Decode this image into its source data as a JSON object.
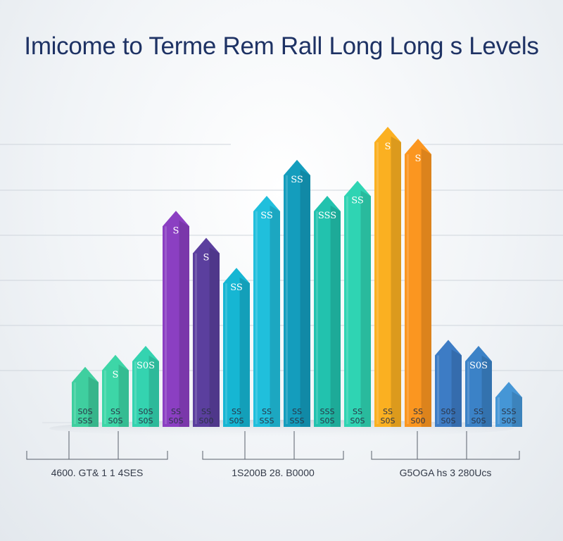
{
  "colors": {
    "title": "#1e3264",
    "grid": "#cfd5dc",
    "bracket": "#59606b"
  },
  "chart_data": {
    "type": "bar",
    "title": "Imicome to Terme Rem Rall Long Long s Levels",
    "grid": true,
    "ylim": [
      0,
      100
    ],
    "groups": [
      {
        "label": "4600. GT& 1 1 4SES",
        "bracket": [
          38,
          238
        ]
      },
      {
        "label": "1S200B 28. B0000",
        "bracket": [
          288,
          488
        ]
      },
      {
        "label": "G5OGA hs  3 280Ucs",
        "bracket": [
          528,
          738
        ]
      }
    ],
    "bars": [
      {
        "value": 20,
        "top_label": "",
        "label": "S0S",
        "label2": "SSS",
        "color": "#3fcf9f"
      },
      {
        "value": 24,
        "top_label": "S",
        "label": "SS",
        "label2": "S0S",
        "color": "#3dd6a7"
      },
      {
        "value": 27,
        "top_label": "S0S",
        "label": "S0S",
        "label2": "S0S",
        "color": "#34d3b0"
      },
      {
        "value": 72,
        "top_label": "S",
        "label": "SS",
        "label2": "S0S",
        "color": "#8b3fc2"
      },
      {
        "value": 63,
        "top_label": "S",
        "label": "SS",
        "label2": "S00",
        "color": "#5b3f9e"
      },
      {
        "value": 53,
        "top_label": "SS",
        "label": "SS",
        "label2": "S0S",
        "color": "#16b6d3"
      },
      {
        "value": 77,
        "top_label": "SS",
        "label": "SS",
        "label2": "SSS",
        "color": "#20bfdc"
      },
      {
        "value": 89,
        "top_label": "SS",
        "label": "SS",
        "label2": "SSS",
        "color": "#149dbd"
      },
      {
        "value": 77,
        "top_label": "SSS",
        "label": "SSS",
        "label2": "S0S",
        "color": "#22c2ae"
      },
      {
        "value": 82,
        "top_label": "SS",
        "label": "SS",
        "label2": "S0S",
        "color": "#2fd4b3"
      },
      {
        "value": 100,
        "top_label": "S",
        "label": "SS",
        "label2": "S0S",
        "color": "#fbb021"
      },
      {
        "value": 96,
        "top_label": "S",
        "label": "SS",
        "label2": "S00",
        "color": "#fb9620"
      },
      {
        "value": 29,
        "top_label": "",
        "label": "S0S",
        "label2": "S0S",
        "color": "#3d7cc5"
      },
      {
        "value": 27,
        "top_label": "S0S",
        "label": "SS",
        "label2": "S0S",
        "color": "#3b82c7"
      },
      {
        "value": 15,
        "top_label": "",
        "label": "SSS",
        "label2": "S0S",
        "color": "#4596d6"
      }
    ]
  }
}
